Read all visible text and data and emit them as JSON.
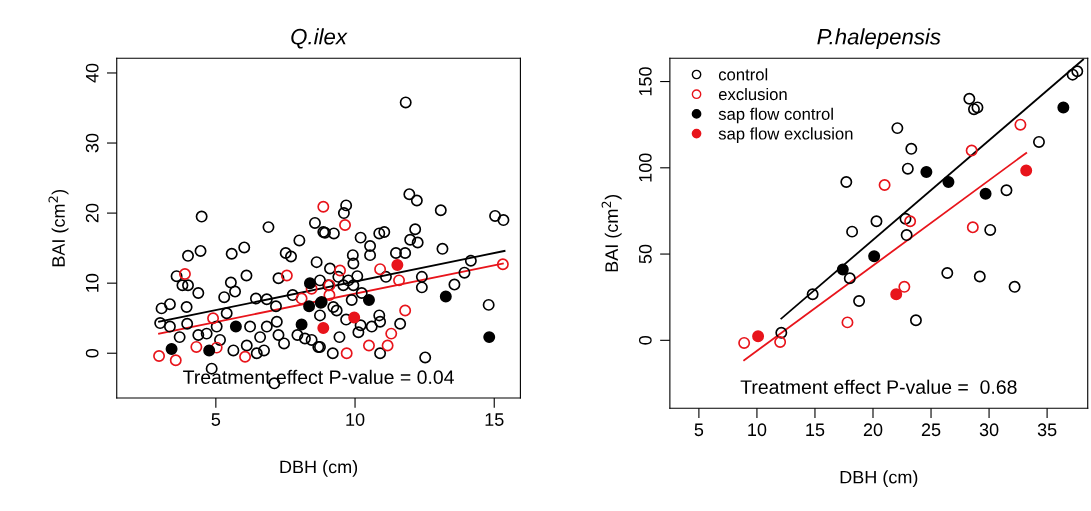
{
  "chart_data": [
    {
      "type": "scatter",
      "title": "Q.ilex",
      "xlabel": "DBH (cm)",
      "ylabel": "BAI (cm$^{2}$)",
      "xlim": [
        1.44,
        15.94
      ],
      "ylim": [
        -6.4,
        42.1
      ],
      "xticks": [
        5,
        10,
        15
      ],
      "yticks": [
        0,
        10,
        20,
        30,
        40
      ],
      "grid": false,
      "legend": false,
      "annotations": [
        "Treatment effect P-value = 0.04"
      ],
      "series": [
        {
          "color": "#000000",
          "marker": "open circle",
          "x": [
            4.49,
            4.0,
            4.45,
            3.59,
            3.8,
            4.0,
            4.37,
            3.05,
            3.35,
            3.0,
            3.35,
            3.95,
            3.97,
            3.7,
            4.85,
            5.57,
            6.02,
            6.1,
            5.54,
            5.69,
            5.3,
            5.39,
            5.03,
            4.67,
            4.37,
            5.15,
            5.63,
            6.11,
            6.23,
            6.47,
            6.73,
            6.89,
            6.44,
            6.83,
            7.16,
            7.19,
            6.83,
            6.59,
            7.25,
            7.45,
            7.25,
            7.51,
            7.7,
            8.0,
            7.76,
            7.93,
            8.2,
            8.44,
            8.68,
            8.56,
            8.62,
            8.86,
            7.1,
            11.82,
            11.95,
            12.22,
            13.08,
            15.03,
            15.33,
            9.68,
            9.6,
            8.92,
            9.24,
            10.87,
            11.05,
            10.2,
            10.54,
            12.16,
            11.98,
            12.25,
            11.8,
            11.47,
            13.14,
            10.54,
            9.92,
            9.94,
            14.16,
            12.4,
            12.4,
            13.57,
            13.93,
            11.11,
            10.08,
            9.76,
            9.1,
            9.4,
            8.74,
            9.04,
            9.58,
            9.94,
            10.24,
            9.88,
            9.22,
            9.34,
            8.74,
            9.68,
            10.2,
            10.6,
            10.9,
            10.87,
            11.62,
            10.12,
            9.44,
            10.9,
            9.2,
            14.8,
            12.52,
            8.74
          ],
          "values": [
            19.5,
            13.9,
            14.6,
            11,
            9.7,
            9.7,
            8.6,
            6.4,
            7.0,
            4.3,
            3.8,
            6.6,
            4.2,
            2.3,
            -2.2,
            14.2,
            15.1,
            11.1,
            10.1,
            8.8,
            8.0,
            5.7,
            3.8,
            2.8,
            2.6,
            1.9,
            0.4,
            1.1,
            3.8,
            0,
            0.4,
            18,
            7.8,
            7.7,
            6.7,
            4.5,
            3.8,
            2.3,
            2.6,
            1.4,
            10.7,
            14.3,
            13.8,
            16.1,
            8.3,
            2.6,
            2.1,
            1.9,
            0.9,
            18.6,
            13,
            17.3,
            -4.3,
            35.8,
            22.7,
            21.8,
            20.4,
            19.6,
            19.0,
            21.1,
            20,
            17.2,
            17.1,
            17.1,
            17.3,
            16.5,
            15.3,
            17.7,
            16.2,
            15.8,
            14.3,
            14.3,
            14.9,
            14.0,
            14.0,
            12.8,
            13.2,
            10.9,
            9.4,
            9.8,
            11.5,
            10.9,
            11,
            10.4,
            12.1,
            10.9,
            10.4,
            9.7,
            9.7,
            9.7,
            8.6,
            7.6,
            6.6,
            6.1,
            5.4,
            4.8,
            4.0,
            3.8,
            4.5,
            5.4,
            4.2,
            3.0,
            2.3,
            0,
            0,
            6.9,
            -0.6,
            0.9
          ]
        },
        {
          "color": "#e8141b",
          "marker": "open circle",
          "x": [
            2.96,
            3.56,
            3.89,
            6.05,
            4.9,
            4.3,
            5.03,
            8.86,
            8.44,
            8.08,
            7.55,
            9.64,
            10.9,
            11.58,
            15.31,
            9.46,
            9.08,
            9.08,
            11.8,
            11.3,
            11.17,
            10.5,
            9.7
          ],
          "values": [
            -0.4,
            -1.0,
            11.3,
            -0.5,
            5.0,
            0.9,
            0.8,
            20.9,
            9.2,
            7.8,
            11.1,
            18.3,
            12,
            10.4,
            12.7,
            11.8,
            9.7,
            8.3,
            6.1,
            2.8,
            1.1,
            1.1,
            0
          ]
        },
        {
          "color": "#000000",
          "marker": "circle",
          "x": [
            3.41,
            4.76,
            5.72,
            8.08,
            8.35,
            8.77,
            8.38,
            10.5,
            13.26,
            14.82,
            8.8
          ],
          "values": [
            0.6,
            0.4,
            3.8,
            4.1,
            6.7,
            7.2,
            10,
            7.6,
            8.1,
            2.3,
            7.3
          ]
        },
        {
          "color": "#e8141b",
          "marker": "circle",
          "x": [
            11.52,
            9.97,
            8.86
          ],
          "values": [
            12.6,
            5.1,
            3.6
          ]
        },
        {
          "type": "line",
          "color": "#000000",
          "x": [
            2.96,
            15.37
          ],
          "values": [
            4.5,
            14.6
          ]
        },
        {
          "type": "line",
          "color": "#e8141b",
          "x": [
            2.96,
            15.31
          ],
          "values": [
            2.8,
            12.8
          ]
        }
      ]
    },
    {
      "type": "scatter",
      "title": "P.halepensis",
      "xlabel": "DBH (cm)",
      "ylabel": "BAI (cm$^{2}$)",
      "xlim": [
        2.5,
        38.5
      ],
      "ylim": [
        -39.4,
        163.5
      ],
      "xticks": [
        5,
        10,
        15,
        20,
        25,
        30,
        35
      ],
      "yticks": [
        0,
        50,
        100,
        150
      ],
      "grid": false,
      "legend": "top left",
      "annotations": [
        "Treatment effect P-value =  0.68"
      ],
      "series": [
        {
          "name": "control",
          "color": "#000000",
          "marker": "open circle",
          "x": [
            37.2,
            37.6,
            28.3,
            28.7,
            29.0,
            22.1,
            23.3,
            34.3,
            23.0,
            17.7,
            31.5,
            20.3,
            22.8,
            18.2,
            22.9,
            30.1,
            18.0,
            26.4,
            29.2,
            32.2,
            14.8,
            18.8,
            23.7,
            12.1
          ],
          "values": [
            154,
            156,
            140,
            134,
            135,
            123,
            111,
            115,
            99.5,
            91.8,
            87,
            69,
            70.5,
            63,
            61,
            64,
            36,
            39,
            37,
            31,
            26.7,
            22.8,
            11.6,
            4.4
          ]
        },
        {
          "name": "exclusion",
          "color": "#e8141b",
          "marker": "open circle",
          "x": [
            32.7,
            28.5,
            21.0,
            23.2,
            28.6,
            22.7,
            17.8,
            8.9,
            12.0
          ],
          "values": [
            125,
            110,
            90,
            69,
            65.5,
            31,
            10.4,
            -1.5,
            -1
          ]
        },
        {
          "name": "sap flow control",
          "color": "#000000",
          "marker": "circle",
          "x": [
            36.4,
            24.6,
            26.5,
            29.7,
            20.1,
            17.4
          ],
          "values": [
            135,
            97.6,
            91.8,
            85,
            48.7,
            41
          ]
        },
        {
          "name": "sap flow exclusion",
          "color": "#e8141b",
          "marker": "circle",
          "x": [
            33.2,
            22.0,
            10.1
          ],
          "values": [
            98.4,
            26.7,
            2.3
          ]
        },
        {
          "type": "line",
          "color": "#000000",
          "x": [
            12.1,
            38.1
          ],
          "values": [
            12.6,
            162.7
          ]
        },
        {
          "type": "line",
          "color": "#e8141b",
          "x": [
            8.9,
            33.2
          ],
          "values": [
            -11.6,
            108.6
          ]
        }
      ]
    }
  ]
}
